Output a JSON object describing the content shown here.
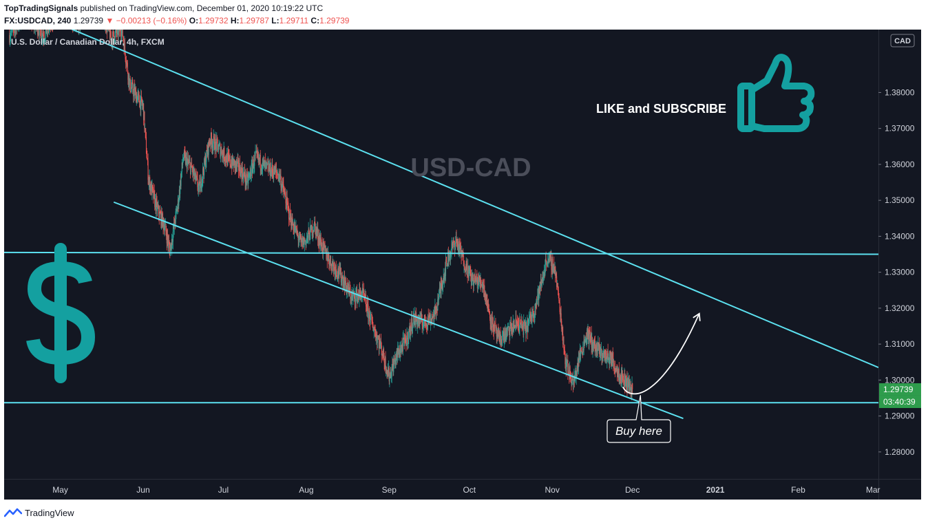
{
  "header": {
    "publisher": "TopTradingSignals",
    "published_text": "published on TradingView.com, December 01, 2020 10:19:22 UTC",
    "symbol": "FX:USDCAD, 240",
    "last": "1.29739",
    "change_arrow": "▼",
    "change": "−0.00213 (−0.16%)",
    "o_label": "O:",
    "o_value": "1.29732",
    "h_label": "H:",
    "h_value": "1.29787",
    "l_label": "L:",
    "l_value": "1.29711",
    "c_label": "C:",
    "c_value": "1.29739"
  },
  "footer": {
    "brand": "TradingView",
    "logo_icon": "tradingview-logo-icon"
  },
  "colors": {
    "background": "#131722",
    "up": "#26a69a",
    "down": "#ef5350",
    "trendline": "#5ce1f0",
    "watermark": "#4b4e5a",
    "accent_teal": "#14a0a0",
    "price_badge": "#2e9c4c",
    "text": "#d1d4dc"
  },
  "chart_data": {
    "type": "candlestick",
    "instrument_label": "U.S. Dollar / Canadian Dollar, 4h, FXCM",
    "currency_badge": "CAD",
    "watermark": "USD-CAD",
    "x_ticks": [
      "May",
      "Jun",
      "Jul",
      "Aug",
      "Sep",
      "Oct",
      "Nov",
      "Dec",
      "2021",
      "Feb",
      "Mar"
    ],
    "x_tick_dates": [
      "2020-05-01",
      "2020-06-01",
      "2020-07-01",
      "2020-08-01",
      "2020-09-01",
      "2020-10-01",
      "2020-11-01",
      "2020-12-01",
      "2021-01-01",
      "2021-02-01",
      "2021-03-01"
    ],
    "y_ticks": [
      "1.28000",
      "1.29000",
      "1.30000",
      "1.31000",
      "1.32000",
      "1.33000",
      "1.34000",
      "1.35000",
      "1.36000",
      "1.37000",
      "1.38000"
    ],
    "y_tick_values": [
      1.28,
      1.29,
      1.3,
      1.31,
      1.32,
      1.33,
      1.34,
      1.35,
      1.36,
      1.37,
      1.38
    ],
    "ylim": [
      1.2725,
      1.3975
    ],
    "xlim": [
      "2020-04-10",
      "2021-03-03"
    ],
    "last_price": {
      "value": 1.29739,
      "label": "1.29739",
      "countdown": "03:40:39"
    },
    "price_path": [
      [
        "2020-04-12",
        1.396
      ],
      [
        "2020-04-18",
        1.402
      ],
      [
        "2020-04-25",
        1.396
      ],
      [
        "2020-05-01",
        1.404
      ],
      [
        "2020-05-08",
        1.399
      ],
      [
        "2020-05-14",
        1.409
      ],
      [
        "2020-05-20",
        1.395
      ],
      [
        "2020-05-24",
        1.398
      ],
      [
        "2020-05-27",
        1.382
      ],
      [
        "2020-06-01",
        1.376
      ],
      [
        "2020-06-03",
        1.356
      ],
      [
        "2020-06-06",
        1.348
      ],
      [
        "2020-06-09",
        1.343
      ],
      [
        "2020-06-11",
        1.336
      ],
      [
        "2020-06-14",
        1.349
      ],
      [
        "2020-06-16",
        1.362
      ],
      [
        "2020-06-19",
        1.359
      ],
      [
        "2020-06-22",
        1.353
      ],
      [
        "2020-06-24",
        1.36
      ],
      [
        "2020-06-26",
        1.367
      ],
      [
        "2020-06-30",
        1.364
      ],
      [
        "2020-07-03",
        1.361
      ],
      [
        "2020-07-07",
        1.359
      ],
      [
        "2020-07-10",
        1.355
      ],
      [
        "2020-07-13",
        1.362
      ],
      [
        "2020-07-17",
        1.359
      ],
      [
        "2020-07-20",
        1.358
      ],
      [
        "2020-07-22",
        1.357
      ],
      [
        "2020-07-26",
        1.345
      ],
      [
        "2020-07-30",
        1.338
      ],
      [
        "2020-08-01",
        1.339
      ],
      [
        "2020-08-04",
        1.343
      ],
      [
        "2020-08-07",
        1.337
      ],
      [
        "2020-08-10",
        1.333
      ],
      [
        "2020-08-14",
        1.329
      ],
      [
        "2020-08-18",
        1.323
      ],
      [
        "2020-08-22",
        1.324
      ],
      [
        "2020-08-25",
        1.317
      ],
      [
        "2020-08-29",
        1.309
      ],
      [
        "2020-09-01",
        1.301
      ],
      [
        "2020-09-04",
        1.307
      ],
      [
        "2020-09-08",
        1.312
      ],
      [
        "2020-09-10",
        1.317
      ],
      [
        "2020-09-14",
        1.316
      ],
      [
        "2020-09-18",
        1.318
      ],
      [
        "2020-09-21",
        1.328
      ],
      [
        "2020-09-23",
        1.334
      ],
      [
        "2020-09-26",
        1.339
      ],
      [
        "2020-09-29",
        1.333
      ],
      [
        "2020-10-02",
        1.328
      ],
      [
        "2020-10-06",
        1.327
      ],
      [
        "2020-10-09",
        1.317
      ],
      [
        "2020-10-12",
        1.311
      ],
      [
        "2020-10-15",
        1.313
      ],
      [
        "2020-10-19",
        1.316
      ],
      [
        "2020-10-22",
        1.314
      ],
      [
        "2020-10-25",
        1.319
      ],
      [
        "2020-10-28",
        1.327
      ],
      [
        "2020-10-30",
        1.334
      ],
      [
        "2020-11-02",
        1.331
      ],
      [
        "2020-11-04",
        1.319
      ],
      [
        "2020-11-06",
        1.305
      ],
      [
        "2020-11-09",
        1.299
      ],
      [
        "2020-11-11",
        1.306
      ],
      [
        "2020-11-14",
        1.313
      ],
      [
        "2020-11-17",
        1.309
      ],
      [
        "2020-11-20",
        1.307
      ],
      [
        "2020-11-23",
        1.306
      ],
      [
        "2020-11-26",
        1.302
      ],
      [
        "2020-11-28",
        1.3
      ],
      [
        "2020-12-01",
        1.29739
      ]
    ],
    "lines": [
      {
        "name": "upper-channel",
        "from": [
          "2020-04-10",
          1.4055
        ],
        "to": [
          "2021-03-03",
          1.3035
        ]
      },
      {
        "name": "lower-channel",
        "from": [
          "2020-05-21",
          1.3495
        ],
        "to": [
          "2020-12-20",
          1.2893
        ]
      },
      {
        "name": "resistance",
        "from": [
          "2020-04-10",
          1.3355
        ],
        "to": [
          "2021-03-03",
          1.335
        ]
      },
      {
        "name": "support",
        "from": [
          "2020-04-10",
          1.2937
        ],
        "to": [
          "2021-03-03",
          1.2937
        ]
      }
    ],
    "projection": {
      "from": [
        "2020-12-01",
        1.2958
      ],
      "to": [
        "2020-12-26",
        1.3185
      ]
    },
    "annotations": [
      {
        "text": "LIKE and SUBSCRIBE",
        "icon": "thumbs-up-icon"
      },
      {
        "text": "Buy here",
        "date": "2020-12-04",
        "value": 1.2958
      },
      {
        "text": "",
        "icon": "dollar-sign-icon"
      }
    ]
  }
}
